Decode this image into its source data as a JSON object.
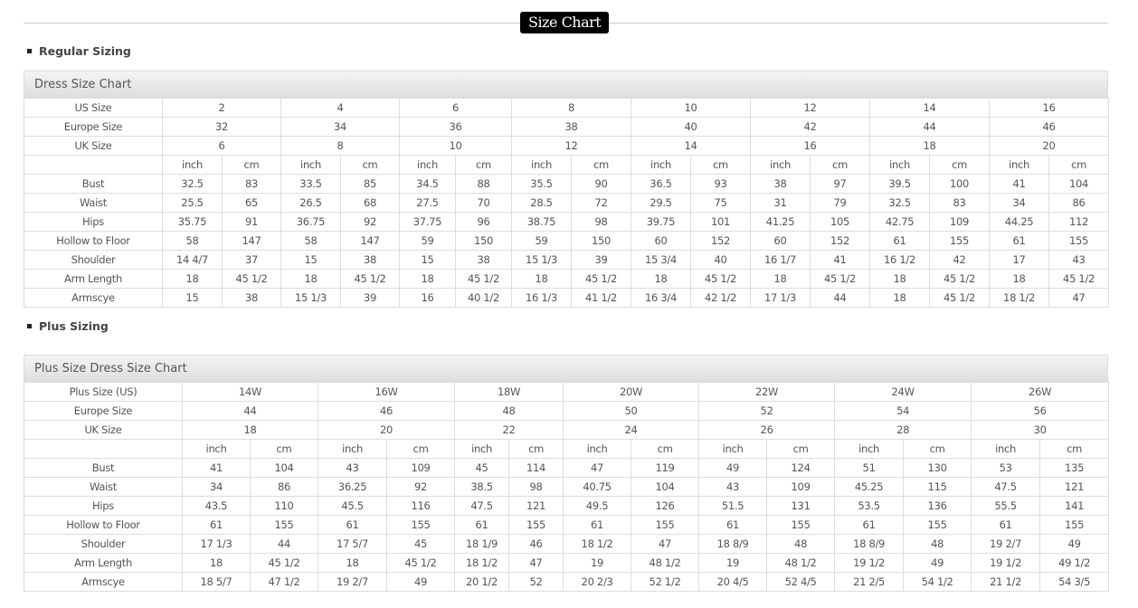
{
  "page_title": "Size Chart",
  "sections": [
    {
      "heading": "Regular Sizing",
      "chart_title": "Dress Size Chart",
      "size_rows": [
        {
          "label": "US Size",
          "values": [
            "2",
            "4",
            "6",
            "8",
            "10",
            "12",
            "14",
            "16"
          ]
        },
        {
          "label": "Europe Size",
          "values": [
            "32",
            "34",
            "36",
            "38",
            "40",
            "42",
            "44",
            "46"
          ]
        },
        {
          "label": "UK Size",
          "values": [
            "6",
            "8",
            "10",
            "12",
            "14",
            "16",
            "18",
            "20"
          ]
        }
      ],
      "units": [
        "inch",
        "cm"
      ],
      "measure_rows": [
        {
          "label": "Bust",
          "values": [
            "32.5",
            "83",
            "33.5",
            "85",
            "34.5",
            "88",
            "35.5",
            "90",
            "36.5",
            "93",
            "38",
            "97",
            "39.5",
            "100",
            "41",
            "104"
          ]
        },
        {
          "label": "Waist",
          "values": [
            "25.5",
            "65",
            "26.5",
            "68",
            "27.5",
            "70",
            "28.5",
            "72",
            "29.5",
            "75",
            "31",
            "79",
            "32.5",
            "83",
            "34",
            "86"
          ]
        },
        {
          "label": "Hips",
          "values": [
            "35.75",
            "91",
            "36.75",
            "92",
            "37.75",
            "96",
            "38.75",
            "98",
            "39.75",
            "101",
            "41.25",
            "105",
            "42.75",
            "109",
            "44.25",
            "112"
          ]
        },
        {
          "label": "Hollow to Floor",
          "values": [
            "58",
            "147",
            "58",
            "147",
            "59",
            "150",
            "59",
            "150",
            "60",
            "152",
            "60",
            "152",
            "61",
            "155",
            "61",
            "155"
          ]
        },
        {
          "label": "Shoulder",
          "values": [
            "14 4/7",
            "37",
            "15",
            "38",
            "15",
            "38",
            "15 1/3",
            "39",
            "15 3/4",
            "40",
            "16 1/7",
            "41",
            "16 1/2",
            "42",
            "17",
            "43"
          ]
        },
        {
          "label": "Arm Length",
          "values": [
            "18",
            "45 1/2",
            "18",
            "45 1/2",
            "18",
            "45 1/2",
            "18",
            "45 1/2",
            "18",
            "45 1/2",
            "18",
            "45 1/2",
            "18",
            "45 1/2",
            "18",
            "45 1/2"
          ]
        },
        {
          "label": "Armscye",
          "values": [
            "15",
            "38",
            "15 1/3",
            "39",
            "16",
            "40 1/2",
            "16 1/3",
            "41 1/2",
            "16 3/4",
            "42 1/2",
            "17 1/3",
            "44",
            "18",
            "45 1/2",
            "18 1/2",
            "47"
          ]
        }
      ]
    },
    {
      "heading": "Plus Sizing",
      "chart_title": "Plus Size Dress Size Chart",
      "size_rows": [
        {
          "label": "Plus Size (US)",
          "values": [
            "14W",
            "16W",
            "18W",
            "20W",
            "22W",
            "24W",
            "26W"
          ]
        },
        {
          "label": "Europe Size",
          "values": [
            "44",
            "46",
            "48",
            "50",
            "52",
            "54",
            "56"
          ]
        },
        {
          "label": "UK Size",
          "values": [
            "18",
            "20",
            "22",
            "24",
            "26",
            "28",
            "30"
          ]
        }
      ],
      "units": [
        "inch",
        "cm"
      ],
      "measure_rows": [
        {
          "label": "Bust",
          "values": [
            "41",
            "104",
            "43",
            "109",
            "45",
            "114",
            "47",
            "119",
            "49",
            "124",
            "51",
            "130",
            "53",
            "135"
          ]
        },
        {
          "label": "Waist",
          "values": [
            "34",
            "86",
            "36.25",
            "92",
            "38.5",
            "98",
            "40.75",
            "104",
            "43",
            "109",
            "45.25",
            "115",
            "47.5",
            "121"
          ]
        },
        {
          "label": "Hips",
          "values": [
            "43.5",
            "110",
            "45.5",
            "116",
            "47.5",
            "121",
            "49.5",
            "126",
            "51.5",
            "131",
            "53.5",
            "136",
            "55.5",
            "141"
          ]
        },
        {
          "label": "Hollow to Floor",
          "values": [
            "61",
            "155",
            "61",
            "155",
            "61",
            "155",
            "61",
            "155",
            "61",
            "155",
            "61",
            "155",
            "61",
            "155"
          ]
        },
        {
          "label": "Shoulder",
          "values": [
            "17 1/3",
            "44",
            "17 5/7",
            "45",
            "18 1/9",
            "46",
            "18 1/2",
            "47",
            "18 8/9",
            "48",
            "18 8/9",
            "48",
            "19 2/7",
            "49"
          ]
        },
        {
          "label": "Arm Length",
          "values": [
            "18",
            "45 1/2",
            "18",
            "45 1/2",
            "18 1/2",
            "47",
            "19",
            "48 1/2",
            "19",
            "48 1/2",
            "19 1/2",
            "49",
            "19 1/2",
            "49 1/2"
          ]
        },
        {
          "label": "Armscye",
          "values": [
            "18 5/7",
            "47 1/2",
            "19 2/7",
            "49",
            "20 1/2",
            "52",
            "20 2/3",
            "52 1/2",
            "20 4/5",
            "52 4/5",
            "21 2/5",
            "54 1/2",
            "21 1/2",
            "54 3/5"
          ]
        }
      ]
    }
  ]
}
